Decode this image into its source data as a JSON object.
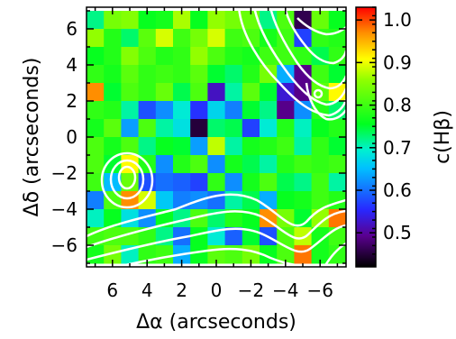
{
  "chart_data": {
    "type": "heatmap",
    "title": "",
    "xlabel": "Δα (arcseconds)",
    "ylabel": "Δδ (arcseconds)",
    "colorbar_label": "c(Hβ)",
    "xlim": [
      7.5,
      -7.5
    ],
    "ylim": [
      -7.2,
      7.2
    ],
    "clim": [
      0.42,
      1.03
    ],
    "x_ticks": [
      6,
      4,
      2,
      0,
      -2,
      -4,
      -6
    ],
    "x_tick_labels": [
      "6",
      "4",
      "2",
      "0",
      "−2",
      "−4",
      "−6"
    ],
    "y_ticks": [
      6,
      4,
      2,
      0,
      -2,
      -4,
      -6
    ],
    "y_tick_labels": [
      "6",
      "4",
      "2",
      "0",
      "−2",
      "−4",
      "−6"
    ],
    "colorbar_ticks": [
      0.5,
      0.6,
      0.7,
      0.8,
      0.9,
      1.0
    ],
    "colorbar_tick_labels": [
      "0.5",
      "0.6",
      "0.7",
      "0.8",
      "0.9",
      "1.0"
    ],
    "grid": false,
    "pixel_size_arcsec": 1.0,
    "colormap": "rainbow (black-purple-blue-cyan-green-yellow-red)",
    "contour_color": "#ffffff",
    "columns_x": [
      7,
      6,
      5,
      4,
      3,
      2,
      1,
      0,
      -1,
      -2,
      -3,
      -4,
      -5,
      -6,
      -7
    ],
    "rows_y": [
      6.5,
      5.5,
      4.5,
      3.5,
      2.5,
      1.5,
      0.5,
      -0.5,
      -1.5,
      -2.5,
      -3.5,
      -4.5,
      -5.5,
      -6.5
    ],
    "values": [
      [
        0.72,
        0.84,
        0.85,
        0.76,
        0.77,
        0.87,
        0.76,
        0.86,
        0.84,
        0.83,
        0.72,
        0.81,
        0.46,
        0.83,
        0.76
      ],
      [
        0.86,
        0.78,
        0.73,
        0.82,
        0.89,
        0.8,
        0.84,
        0.89,
        0.8,
        0.81,
        0.77,
        0.8,
        0.57,
        0.79,
        0.78
      ],
      [
        0.76,
        0.78,
        0.85,
        0.81,
        0.78,
        0.79,
        0.86,
        0.81,
        0.78,
        0.77,
        0.8,
        0.8,
        0.79,
        0.74,
        0.79
      ],
      [
        0.79,
        0.77,
        0.82,
        0.79,
        0.8,
        0.79,
        0.82,
        0.75,
        0.73,
        0.78,
        0.84,
        0.64,
        0.49,
        0.8,
        0.75
      ],
      [
        0.97,
        0.75,
        0.81,
        0.79,
        0.83,
        0.74,
        0.81,
        0.52,
        0.71,
        0.82,
        0.75,
        0.53,
        0.49,
        0.82,
        0.91
      ],
      [
        0.79,
        0.78,
        0.71,
        0.58,
        0.62,
        0.69,
        0.56,
        0.67,
        0.61,
        0.75,
        0.72,
        0.49,
        0.62,
        0.78,
        0.73
      ],
      [
        0.77,
        0.82,
        0.63,
        0.81,
        0.71,
        0.68,
        0.45,
        0.73,
        0.74,
        0.57,
        0.69,
        0.78,
        0.7,
        0.76,
        0.78
      ],
      [
        0.81,
        0.77,
        0.81,
        0.72,
        0.76,
        0.75,
        0.63,
        0.88,
        0.71,
        0.77,
        0.78,
        0.8,
        0.71,
        0.79,
        0.75
      ],
      [
        0.81,
        0.75,
        0.91,
        0.78,
        0.62,
        0.78,
        0.81,
        0.62,
        0.77,
        0.74,
        0.71,
        0.78,
        0.8,
        0.79,
        0.8
      ],
      [
        0.8,
        0.65,
        0.83,
        0.58,
        0.6,
        0.59,
        0.57,
        0.79,
        0.62,
        0.77,
        0.81,
        0.74,
        0.72,
        0.8,
        0.71
      ],
      [
        0.61,
        0.81,
        0.97,
        0.89,
        0.66,
        0.61,
        0.62,
        0.6,
        0.71,
        0.74,
        0.64,
        0.76,
        0.77,
        0.8,
        0.78
      ],
      [
        0.7,
        0.76,
        0.68,
        0.62,
        0.76,
        0.72,
        0.81,
        0.73,
        0.78,
        0.76,
        0.97,
        0.84,
        0.75,
        0.86,
        0.98
      ],
      [
        0.8,
        0.81,
        0.81,
        0.79,
        0.72,
        0.6,
        0.76,
        0.69,
        0.59,
        0.75,
        0.58,
        0.81,
        0.88,
        0.77,
        0.8
      ],
      [
        0.77,
        0.84,
        0.7,
        0.79,
        0.8,
        0.64,
        0.76,
        0.82,
        0.81,
        0.84,
        0.76,
        0.81,
        0.98,
        0.77,
        0.79
      ]
    ]
  }
}
